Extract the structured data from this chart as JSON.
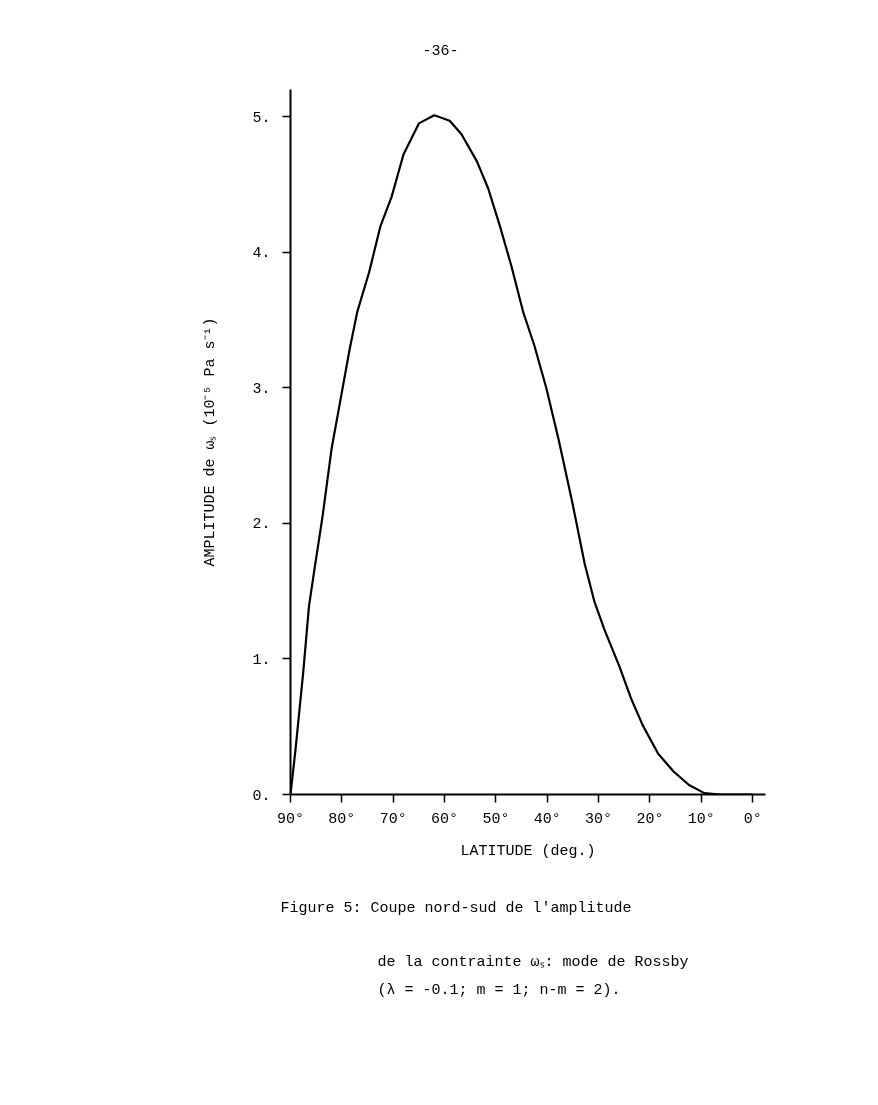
{
  "chart_data": {
    "type": "line",
    "xlabel": "LATITUDE (deg.)",
    "ylabel": "AMPLITUDE de ωₛ (10⁻⁵ Pa s⁻¹)",
    "annotations": [
      "-36-",
      "Figure 5: Coupe nord-sud de l'amplitude",
      "de la contrainte ωₛ: mode de Rossby",
      "(λ = -0.1; m = 1; n-m = 2)."
    ],
    "x": [
      90,
      89.0,
      87.5,
      86.4,
      85.3,
      83.8,
      82.0,
      80.8,
      78.5,
      77.0,
      74.7,
      72.5,
      70.3,
      68.0,
      65.0,
      62.0,
      59.0,
      56.7,
      53.7,
      51.5,
      49.2,
      47.0,
      44.7,
      42.5,
      40.2,
      37.8,
      35.1,
      32.7,
      30.8,
      28.9,
      25.9,
      23.7,
      21.4,
      18.4,
      15.4,
      12.4,
      9.4,
      6.4,
      3.0,
      0.0
    ],
    "series": [
      {
        "color": "#000000",
        "values": [
          0,
          0.34,
          0.91,
          1.39,
          1.67,
          2.04,
          2.55,
          2.8,
          3.28,
          3.56,
          3.85,
          4.19,
          4.41,
          4.72,
          4.95,
          5.01,
          4.97,
          4.87,
          4.67,
          4.47,
          4.19,
          3.9,
          3.56,
          3.31,
          3.0,
          2.62,
          2.15,
          1.7,
          1.42,
          1.22,
          0.94,
          0.71,
          0.51,
          0.3,
          0.17,
          0.07,
          0.01,
          0,
          0,
          0
        ]
      }
    ],
    "xlim": [
      90,
      -2.5
    ],
    "ylim": [
      0,
      5.2
    ],
    "xticks": [
      {
        "value": 90,
        "label": "90°"
      },
      {
        "value": 80,
        "label": "80°"
      },
      {
        "value": 70,
        "label": "70°"
      },
      {
        "value": 60,
        "label": "60°"
      },
      {
        "value": 50,
        "label": "50°"
      },
      {
        "value": 40,
        "label": "40°"
      },
      {
        "value": 30,
        "label": "30°"
      },
      {
        "value": 20,
        "label": "20°"
      },
      {
        "value": 10,
        "label": "10°"
      },
      {
        "value": 0,
        "label": "0°"
      }
    ],
    "yticks": [
      {
        "value": 0,
        "label": "0."
      },
      {
        "value": 1,
        "label": "1."
      },
      {
        "value": 2,
        "label": "2."
      },
      {
        "value": 3,
        "label": "3."
      },
      {
        "value": 4,
        "label": "4."
      },
      {
        "value": 5,
        "label": "5."
      }
    ],
    "marker": "none",
    "line_style": "solid"
  }
}
